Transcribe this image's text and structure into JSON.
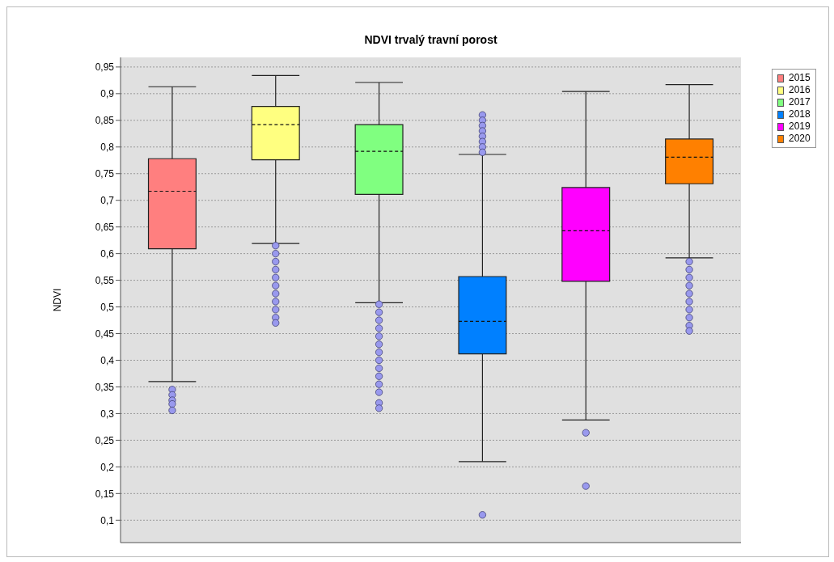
{
  "chart_data": {
    "type": "box",
    "title": "NDVI trvalý travní porost",
    "ylabel": "NDVI",
    "categories": [
      null,
      null,
      null,
      null,
      null,
      null
    ],
    "ylim": [
      0.058,
      0.968
    ],
    "yticks": [
      {
        "value": 0.1,
        "label": "0,1"
      },
      {
        "value": 0.15,
        "label": "0,15"
      },
      {
        "value": 0.2,
        "label": "0,2"
      },
      {
        "value": 0.25,
        "label": "0,25"
      },
      {
        "value": 0.3,
        "label": "0,3"
      },
      {
        "value": 0.35,
        "label": "0,35"
      },
      {
        "value": 0.4,
        "label": "0,4"
      },
      {
        "value": 0.45,
        "label": "0,45"
      },
      {
        "value": 0.5,
        "label": "0,5"
      },
      {
        "value": 0.55,
        "label": "0,55"
      },
      {
        "value": 0.6,
        "label": "0,6"
      },
      {
        "value": 0.65,
        "label": "0,65"
      },
      {
        "value": 0.7,
        "label": "0,7"
      },
      {
        "value": 0.75,
        "label": "0,75"
      },
      {
        "value": 0.8,
        "label": "0,8"
      },
      {
        "value": 0.85,
        "label": "0,85"
      },
      {
        "value": 0.9,
        "label": "0,9"
      },
      {
        "value": 0.95,
        "label": "0,95"
      }
    ],
    "grid": "y",
    "legend": "top right",
    "marker": "circle",
    "series": [
      {
        "name": "2015",
        "color": "#ff7f7f",
        "boxes": [
          {
            "low": 0.36,
            "q1": 0.609,
            "median": 0.717,
            "q3": 0.778,
            "high": 0.913,
            "outliers": [
              0.345,
              0.335,
              0.325,
              0.318,
              0.306
            ]
          },
          null,
          null,
          null,
          null,
          null
        ]
      },
      {
        "name": "2016",
        "color": "#ffff80",
        "boxes": [
          null,
          {
            "low": 0.619,
            "q1": 0.776,
            "median": 0.842,
            "q3": 0.876,
            "high": 0.934,
            "outliers": [
              0.615,
              0.6,
              0.585,
              0.57,
              0.555,
              0.54,
              0.525,
              0.51,
              0.495,
              0.48,
              0.47
            ]
          },
          null,
          null,
          null,
          null
        ]
      },
      {
        "name": "2017",
        "color": "#80ff80",
        "boxes": [
          null,
          null,
          {
            "low": 0.508,
            "q1": 0.711,
            "median": 0.792,
            "q3": 0.842,
            "high": 0.921,
            "outliers": [
              0.505,
              0.49,
              0.475,
              0.46,
              0.445,
              0.43,
              0.415,
              0.4,
              0.385,
              0.37,
              0.355,
              0.34,
              0.32,
              0.31
            ]
          },
          null,
          null,
          null
        ]
      },
      {
        "name": "2018",
        "color": "#0080ff",
        "boxes": [
          null,
          null,
          null,
          {
            "low": 0.21,
            "q1": 0.412,
            "median": 0.473,
            "q3": 0.557,
            "high": 0.786,
            "outliers": [
              0.86,
              0.85,
              0.84,
              0.83,
              0.82,
              0.81,
              0.8,
              0.79,
              0.11
            ]
          },
          null,
          null
        ]
      },
      {
        "name": "2019",
        "color": "#ff00ff",
        "boxes": [
          null,
          null,
          null,
          null,
          {
            "low": 0.288,
            "q1": 0.548,
            "median": 0.643,
            "q3": 0.724,
            "high": 0.904,
            "outliers": [
              0.264,
              0.164
            ]
          },
          null
        ]
      },
      {
        "name": "2020",
        "color": "#ff8000",
        "boxes": [
          null,
          null,
          null,
          null,
          null,
          {
            "low": 0.592,
            "q1": 0.731,
            "median": 0.781,
            "q3": 0.815,
            "high": 0.917,
            "outliers": [
              0.585,
              0.57,
              0.555,
              0.54,
              0.525,
              0.51,
              0.495,
              0.48,
              0.465,
              0.455
            ]
          }
        ]
      }
    ]
  }
}
